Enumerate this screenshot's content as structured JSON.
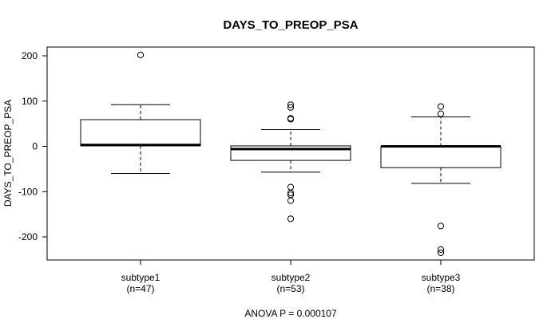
{
  "chart_data": {
    "type": "boxplot",
    "title": "DAYS_TO_PREOP_PSA",
    "xlabel": "",
    "ylabel": "DAYS_TO_PREOP_PSA",
    "ylim": [
      -255,
      220
    ],
    "yticks": [
      -200,
      -100,
      0,
      100,
      200
    ],
    "ytick_labels": [
      "-200",
      "-100",
      "0",
      "100",
      "200"
    ],
    "grid": false,
    "footer": "ANOVA P = 0.000107",
    "colors": {
      "line": "#000000",
      "box_fill": "#ffffff",
      "background": "#ffffff"
    },
    "groups": [
      {
        "name": "subtype1",
        "n_label": "(n=47)",
        "whisker_low": -60,
        "q1": 1,
        "median": 3,
        "q3": 59,
        "whisker_high": 92,
        "outliers": [
          202
        ]
      },
      {
        "name": "subtype2",
        "n_label": "(n=53)",
        "whisker_low": -57,
        "q1": -31,
        "median": -6,
        "q3": 1,
        "whisker_high": 37,
        "outliers": [
          92,
          86,
          62,
          60,
          -90,
          -103,
          -107,
          -120,
          -160
        ]
      },
      {
        "name": "subtype3",
        "n_label": "(n=38)",
        "whisker_low": -82,
        "q1": -47,
        "median": 0,
        "q3": 0,
        "whisker_high": 65,
        "outliers": [
          88,
          72,
          -176,
          -228,
          -235
        ]
      }
    ]
  }
}
